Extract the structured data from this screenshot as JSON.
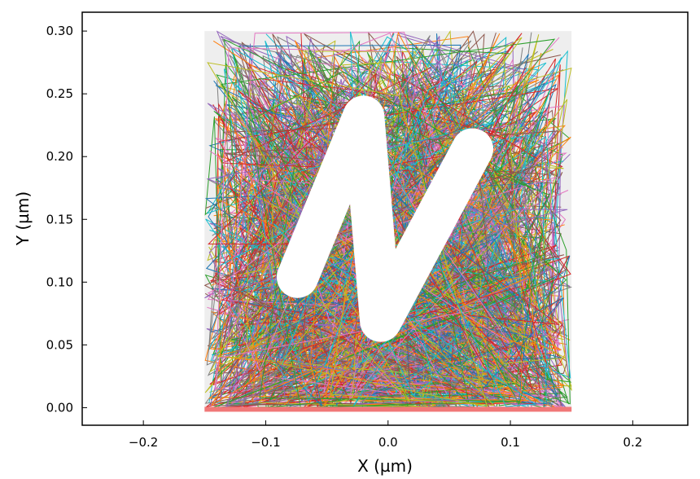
{
  "chart_data": {
    "type": "line",
    "title": "",
    "xlabel": "X (µm)",
    "ylabel": "Y (µm)",
    "xlim": [
      -0.25,
      0.245
    ],
    "ylim": [
      -0.014,
      0.315
    ],
    "xticks": [
      -0.2,
      -0.1,
      0.0,
      0.1,
      0.2
    ],
    "xtick_labels": [
      "−0.2",
      "−0.1",
      "0.0",
      "0.1",
      "0.2"
    ],
    "yticks": [
      0.0,
      0.05,
      0.1,
      0.15,
      0.2,
      0.25,
      0.3
    ],
    "ytick_labels": [
      "0.00",
      "0.05",
      "0.10",
      "0.15",
      "0.20",
      "0.25",
      "0.30"
    ],
    "grid": false,
    "legend": "none",
    "colors": {
      "background_region": "#eeeeee",
      "base_strip": "#f07878",
      "palette": [
        "#1f77b4",
        "#ff7f0e",
        "#2ca02c",
        "#d62728",
        "#9467bd",
        "#8c564b",
        "#e377c2",
        "#7f7f7f",
        "#bcbd22",
        "#17becf"
      ]
    },
    "domain_box": {
      "x": [
        -0.15,
        0.15
      ],
      "y": [
        0.0,
        0.3
      ]
    },
    "obstacle": {
      "shape": "N",
      "stroke_width": 0.034,
      "vertices": [
        [
          -0.074,
          0.104
        ],
        [
          -0.02,
          0.232
        ],
        [
          -0.006,
          0.069
        ],
        [
          0.069,
          0.206
        ]
      ]
    },
    "trajectories": {
      "count": 260,
      "segments_per_trajectory": 9,
      "x_range": [
        -0.15,
        0.15
      ],
      "y_range": [
        0.0,
        0.3
      ],
      "density_weighting": "denser near bottom"
    }
  }
}
